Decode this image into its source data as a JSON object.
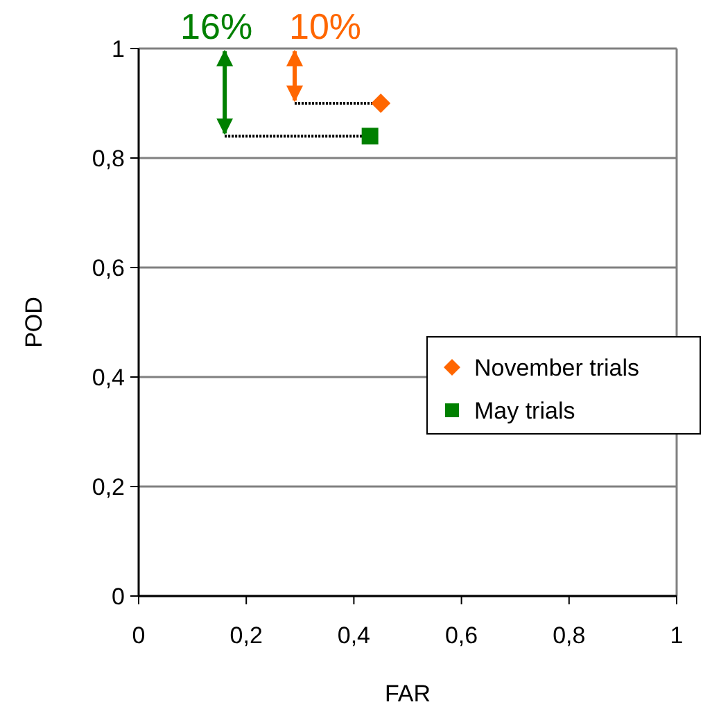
{
  "chart_data": {
    "type": "scatter",
    "xlabel": "FAR",
    "ylabel": "POD",
    "xlim": [
      0,
      1
    ],
    "ylim": [
      0,
      1
    ],
    "xticks": [
      0,
      {
        "value": 0.2,
        "label": "0,2"
      },
      {
        "value": 0.4,
        "label": "0,4"
      },
      {
        "value": 0.6,
        "label": "0,6"
      },
      {
        "value": 0.8,
        "label": "0,8"
      },
      1
    ],
    "yticks": [
      0,
      {
        "value": 0.2,
        "label": "0,2"
      },
      {
        "value": 0.4,
        "label": "0,4"
      },
      {
        "value": 0.6,
        "label": "0,6"
      },
      {
        "value": 0.8,
        "label": "0,8"
      },
      1
    ],
    "grid": "y",
    "legend": "right",
    "series": [
      {
        "type": "line",
        "color": "#000000",
        "line_style": "dotted",
        "marker": "none",
        "x": [
          0.29,
          0.45
        ],
        "values": [
          0.9,
          0.9
        ]
      },
      {
        "type": "line",
        "color": "#000000",
        "line_style": "dotted",
        "marker": "none",
        "x": [
          0.16,
          0.43
        ],
        "values": [
          0.84,
          0.84
        ]
      },
      {
        "name": "November trials",
        "color": "#ff6600",
        "marker": "diamond",
        "x": [
          0.45
        ],
        "values": [
          0.9
        ]
      },
      {
        "name": "May trials",
        "color": "#008000",
        "marker": "square",
        "x": [
          0.43
        ],
        "values": [
          0.84
        ]
      }
    ],
    "annotations": [
      {
        "text": "16%",
        "x": 0.16,
        "y": 0.84
      },
      {
        "text": "10%",
        "x": 0.29,
        "y": 0.9
      }
    ]
  }
}
